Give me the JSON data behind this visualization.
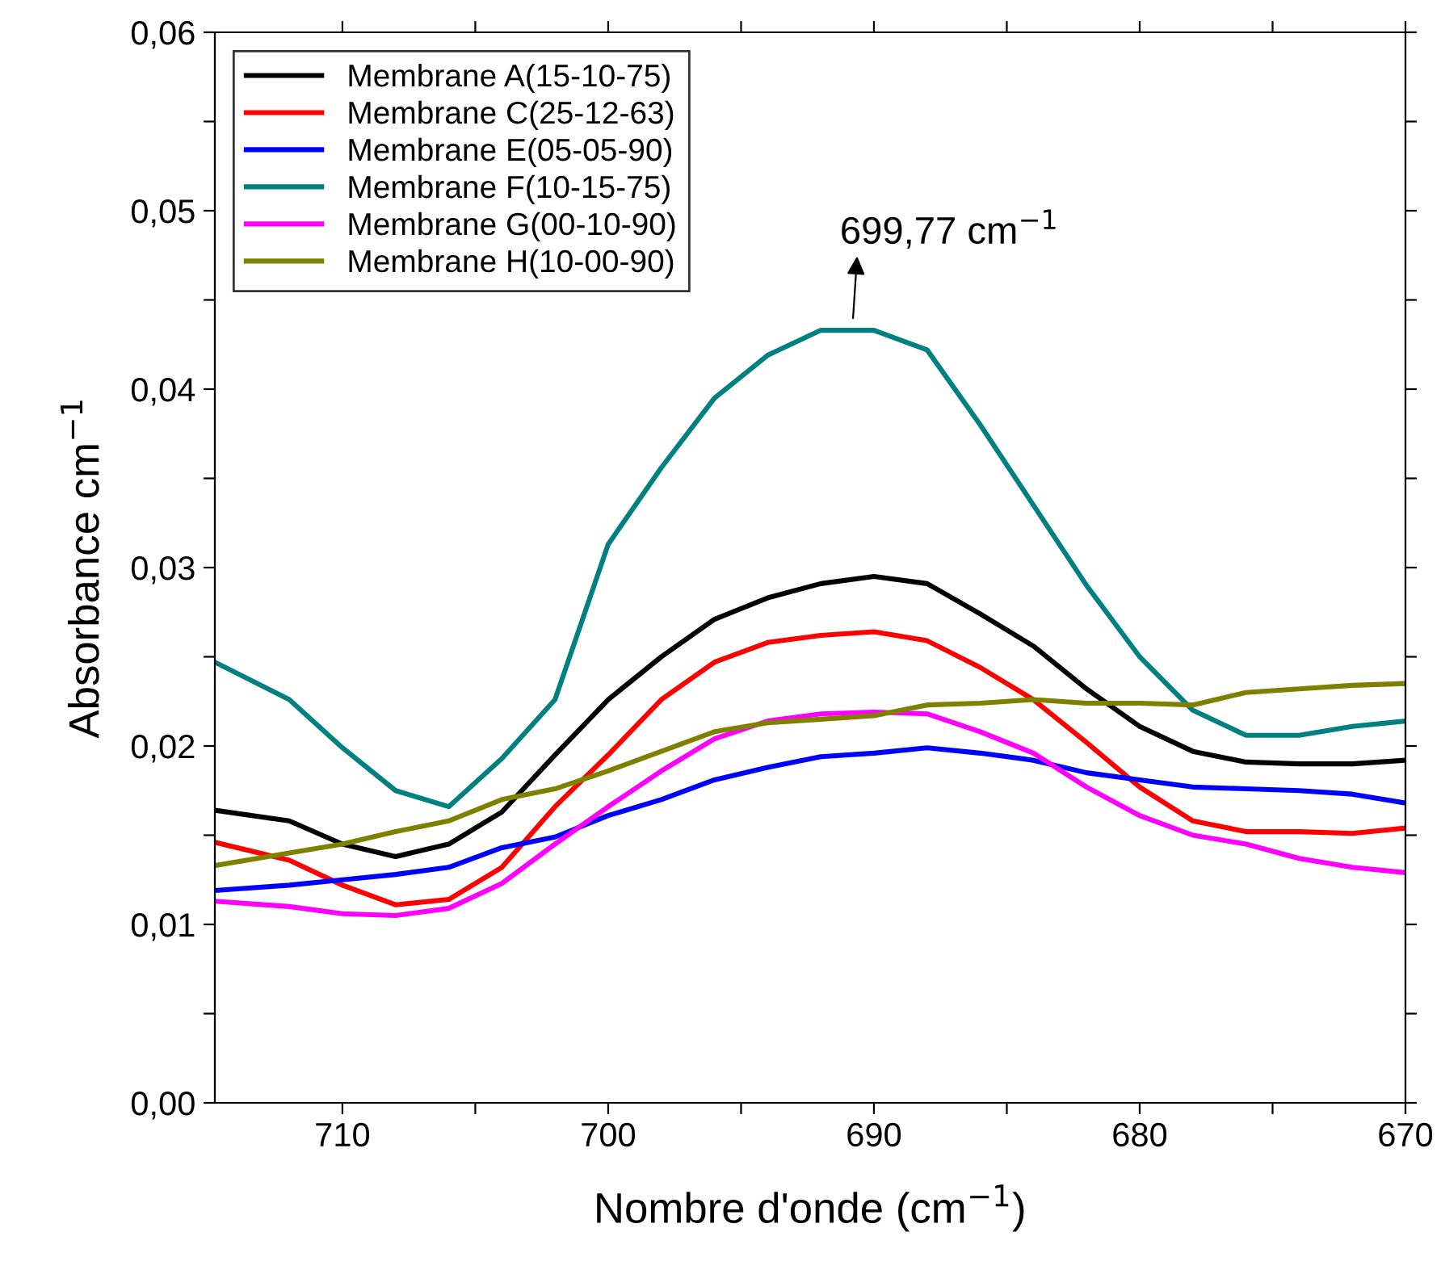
{
  "chart_data": {
    "type": "line",
    "xlabel": "Nombre d'onde (cm$^{−1}$)",
    "ylabel": "Absorbance cm$^{−1}$",
    "x": [
      714.8,
      712,
      710,
      708,
      706,
      704,
      702,
      700,
      698,
      696,
      694,
      692,
      690,
      688,
      686,
      684,
      682,
      680,
      678,
      676,
      674,
      672,
      670
    ],
    "series": [
      {
        "name": "Membrane A(15-10-75)",
        "color": "#000000",
        "values": [
          0.0164,
          0.0158,
          0.0145,
          0.0138,
          0.0145,
          0.0163,
          0.0195,
          0.0226,
          0.025,
          0.0271,
          0.0283,
          0.0291,
          0.0295,
          0.0291,
          0.0274,
          0.0256,
          0.0232,
          0.0211,
          0.0197,
          0.0191,
          0.019,
          0.019,
          0.0192
        ]
      },
      {
        "name": "Membrane C(25-12-63)",
        "color": "#ff0000",
        "values": [
          0.0146,
          0.0136,
          0.0122,
          0.0111,
          0.0114,
          0.0132,
          0.0166,
          0.0195,
          0.0226,
          0.0247,
          0.0258,
          0.0262,
          0.0264,
          0.0259,
          0.0244,
          0.0226,
          0.0202,
          0.0177,
          0.0158,
          0.0152,
          0.0152,
          0.0151,
          0.0154
        ]
      },
      {
        "name": "Membrane E(05-05-90)",
        "color": "#0000ff",
        "values": [
          0.0119,
          0.0122,
          0.0125,
          0.0128,
          0.0132,
          0.0143,
          0.0149,
          0.0161,
          0.017,
          0.0181,
          0.0188,
          0.0194,
          0.0196,
          0.0199,
          0.0196,
          0.0192,
          0.0185,
          0.0181,
          0.0177,
          0.0176,
          0.0175,
          0.0173,
          0.0168
        ]
      },
      {
        "name": "Membrane F(10-15-75)",
        "color": "#008080",
        "values": [
          0.0247,
          0.0226,
          0.0199,
          0.0175,
          0.0166,
          0.0193,
          0.0226,
          0.0313,
          0.0356,
          0.0395,
          0.0419,
          0.0433,
          0.0433,
          0.0422,
          0.038,
          0.0335,
          0.029,
          0.025,
          0.022,
          0.0206,
          0.0206,
          0.0211,
          0.0214
        ]
      },
      {
        "name": "Membrane G(00-10-90)",
        "color": "#ff00ff",
        "values": [
          0.0113,
          0.011,
          0.0106,
          0.0105,
          0.0109,
          0.0123,
          0.0145,
          0.0166,
          0.0186,
          0.0204,
          0.0214,
          0.0218,
          0.0219,
          0.0218,
          0.0208,
          0.0196,
          0.0177,
          0.0161,
          0.015,
          0.0145,
          0.0137,
          0.0132,
          0.0129
        ]
      },
      {
        "name": "Membrane H(10-00-90)",
        "color": "#808000",
        "values": [
          0.0133,
          0.014,
          0.0145,
          0.0152,
          0.0158,
          0.017,
          0.0176,
          0.0186,
          0.0197,
          0.0208,
          0.0213,
          0.0215,
          0.0217,
          0.0223,
          0.0224,
          0.0226,
          0.0224,
          0.0224,
          0.0223,
          0.023,
          0.0232,
          0.0234,
          0.0235
        ]
      }
    ],
    "annotations": [
      "699,77 cm$^{−1}$"
    ],
    "xlim": [
      714.8,
      670
    ],
    "ylim": [
      0,
      0.06
    ],
    "xticks": [
      {
        "value": 710,
        "label": "710"
      },
      {
        "value": 705,
        "label": null
      },
      {
        "value": 700,
        "label": "700"
      },
      {
        "value": 695,
        "label": null
      },
      {
        "value": 690,
        "label": "690"
      },
      {
        "value": 685,
        "label": null
      },
      {
        "value": 680,
        "label": "680"
      },
      {
        "value": 675,
        "label": null
      },
      {
        "value": 670,
        "label": "670"
      }
    ],
    "yticks": [
      {
        "value": 0,
        "label": "0,00"
      },
      {
        "value": 0.005,
        "label": null
      },
      {
        "value": 0.01,
        "label": "0,01"
      },
      {
        "value": 0.015,
        "label": null
      },
      {
        "value": 0.02,
        "label": "0,02"
      },
      {
        "value": 0.025,
        "label": null
      },
      {
        "value": 0.03,
        "label": "0,03"
      },
      {
        "value": 0.035,
        "label": null
      },
      {
        "value": 0.04,
        "label": "0,04"
      },
      {
        "value": 0.045,
        "label": null
      },
      {
        "value": 0.05,
        "label": "0,05"
      },
      {
        "value": 0.055,
        "label": null
      },
      {
        "value": 0.06,
        "label": "0,06"
      }
    ],
    "legend": "top left",
    "grid": false,
    "marker": "none",
    "line_style": "solid"
  }
}
